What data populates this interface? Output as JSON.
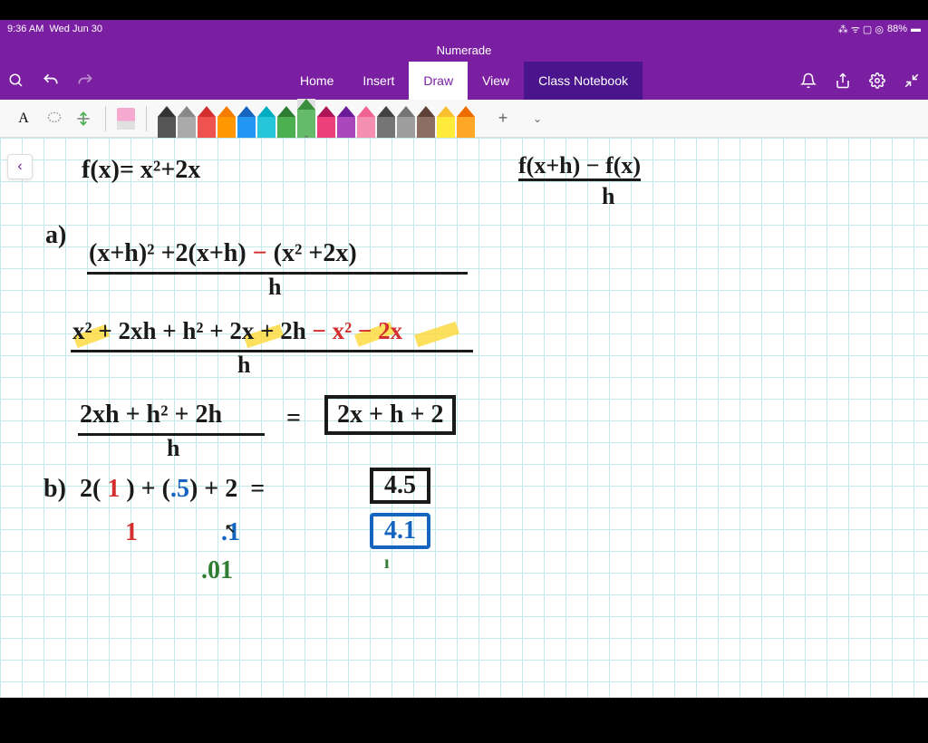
{
  "status": {
    "time": "9:36 AM",
    "date": "Wed Jun 30",
    "battery": "88%"
  },
  "title": "Numerade",
  "tabs": {
    "home": "Home",
    "insert": "Insert",
    "draw": "Draw",
    "view": "View",
    "notebook": "Class Notebook"
  },
  "toolbar": {
    "text": "A",
    "add": "+",
    "expand": "⌄"
  },
  "pens": [
    {
      "tip": "#333",
      "body": "#555"
    },
    {
      "tip": "#888",
      "body": "#aaa"
    },
    {
      "tip": "#d32f2f",
      "body": "#ef5350"
    },
    {
      "tip": "#f57c00",
      "body": "#ff9800"
    },
    {
      "tip": "#1565c0",
      "body": "#2196f3"
    },
    {
      "tip": "#00acc1",
      "body": "#26c6da"
    },
    {
      "tip": "#2e7d32",
      "body": "#4caf50"
    },
    {
      "tip": "#388e3c",
      "body": "#66bb6a"
    },
    {
      "tip": "#ad1457",
      "body": "#ec407a"
    },
    {
      "tip": "#6a1b9a",
      "body": "#ab47bc"
    },
    {
      "tip": "#f06292",
      "body": "#f48fb1"
    },
    {
      "tip": "#424242",
      "body": "#757575"
    },
    {
      "tip": "#757575",
      "body": "#9e9e9e"
    },
    {
      "tip": "#5d4037",
      "body": "#8d6e63"
    },
    {
      "tip": "#fbc02d",
      "body": "#ffeb3b"
    },
    {
      "tip": "#ef6c00",
      "body": "#ffa726"
    }
  ],
  "selectedPen": 7,
  "handwriting": {
    "line1": "f(x)=  x²+2x",
    "formula": "f(x+h) − f(x)",
    "formula_denom": "h",
    "a_label": "a)",
    "a1_num": "(x+h)² +2(x+h) − (x² +2x)",
    "a1_denom": "h",
    "a2_num": "x² + 2xh + h² + 2x + 2h − x² − 2x",
    "a2_denom": "h",
    "a3_num": "2xh + h² + 2h",
    "a3_denom": "h",
    "a3_result": "2x + h + 2",
    "b_label": "b)",
    "b1": "2( 1 ) + (.5) + 2  =",
    "b1_result": "4.5",
    "b2_red": "1",
    "b2_blue": ".1",
    "b2_result": "4.1",
    "b3_green": ".01"
  },
  "colors": {
    "black": "#1a1a1a",
    "red": "#d32f2f",
    "blue": "#1565c0",
    "green": "#2e7d32",
    "yellow": "#fdd835"
  }
}
